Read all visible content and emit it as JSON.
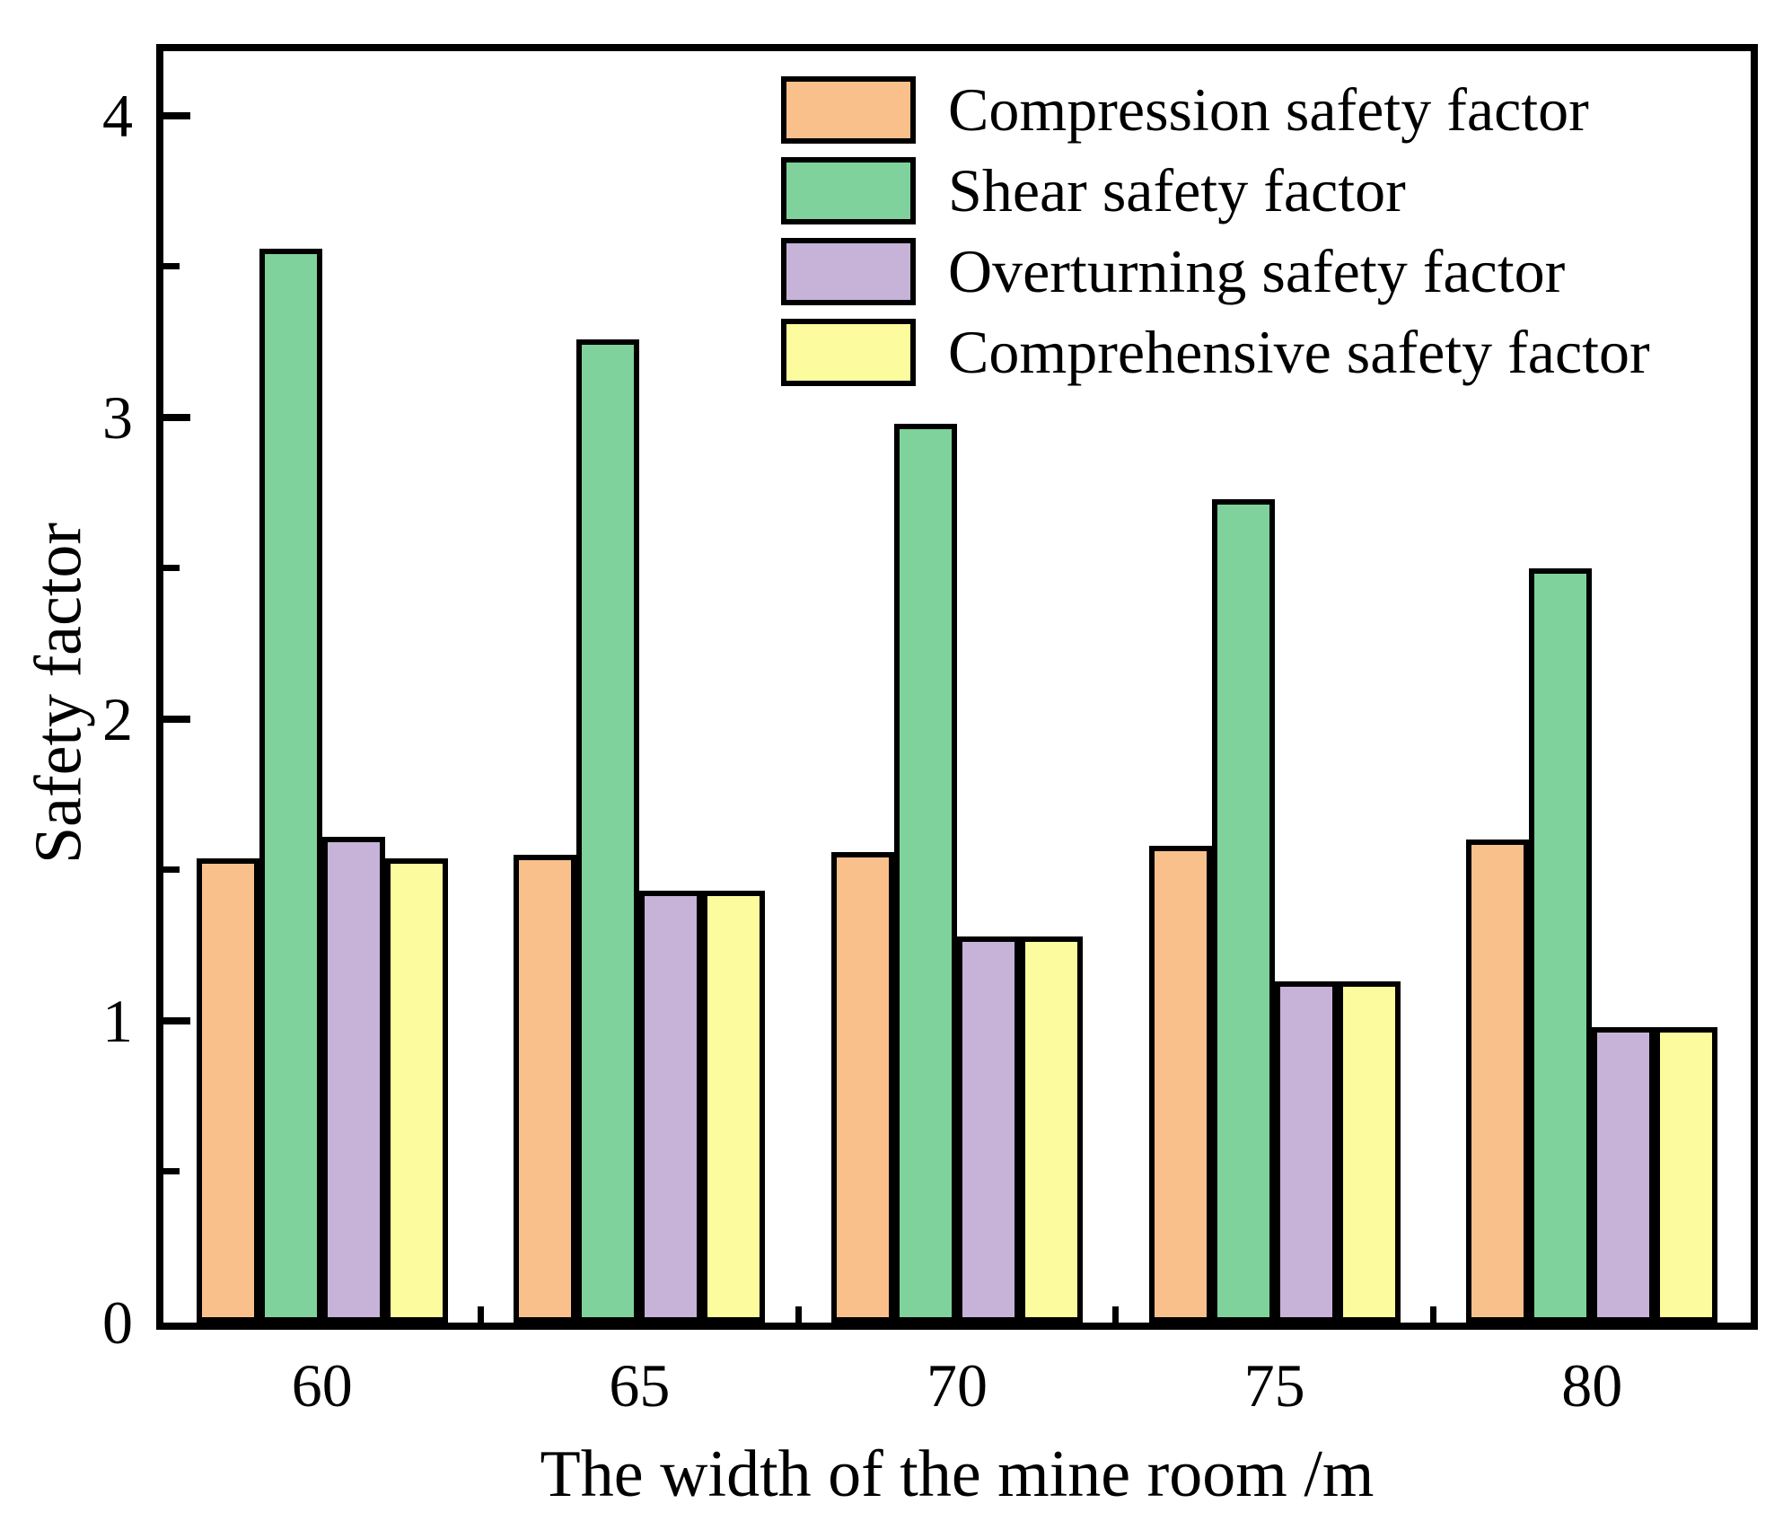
{
  "figure": {
    "background_color": "#ffffff",
    "frame_color": "#000000",
    "bar_border_color": "#000000"
  },
  "chart_data": {
    "type": "bar",
    "title": "",
    "xlabel": "The width of the mine room /m",
    "ylabel": "Safety factor",
    "categories": [
      "60",
      "65",
      "70",
      "75",
      "80"
    ],
    "series": [
      {
        "name": "Compression safety factor",
        "color": "#FAC08C",
        "values": [
          1.54,
          1.55,
          1.56,
          1.58,
          1.6
        ]
      },
      {
        "name": "Shear safety factor",
        "color": "#7FD29B",
        "values": [
          3.56,
          3.26,
          2.98,
          2.73,
          2.5
        ]
      },
      {
        "name": "Overturning safety factor",
        "color": "#C6B3D7",
        "values": [
          1.61,
          1.43,
          1.28,
          1.13,
          0.98
        ]
      },
      {
        "name": "Comprehensive safety factor",
        "color": "#FCFC9E",
        "values": [
          1.54,
          1.43,
          1.28,
          1.13,
          0.98
        ]
      }
    ],
    "ylim": [
      0,
      4.214
    ],
    "y_major_ticks": [
      0,
      1,
      2,
      3,
      4
    ],
    "y_minor_ticks": [
      0.5,
      1.5,
      2.5,
      3.5
    ],
    "grid": false,
    "legend_position": "top-center-inside",
    "legend_order": [
      "Compression safety factor",
      "Shear safety factor",
      "Overturning safety factor",
      "Comprehensive safety factor"
    ]
  }
}
